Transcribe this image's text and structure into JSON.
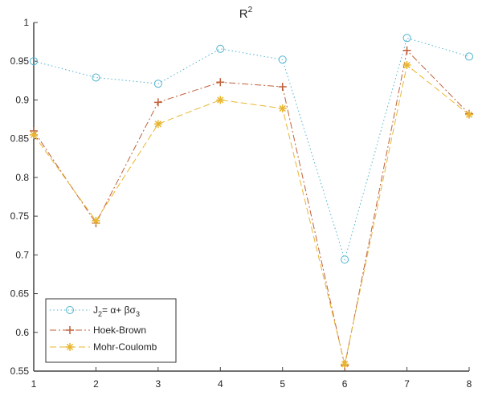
{
  "chart_data": {
    "type": "line",
    "title": "R",
    "title_superscript": "2",
    "xlabel": "",
    "ylabel": "",
    "x": [
      1,
      2,
      3,
      4,
      5,
      6,
      7,
      8
    ],
    "xlim": [
      1,
      8
    ],
    "ylim": [
      0.55,
      1
    ],
    "xticks": [
      "1",
      "2",
      "3",
      "4",
      "5",
      "6",
      "7",
      "8"
    ],
    "yticks": [
      "0.55",
      "0.6",
      "0.65",
      "0.7",
      "0.75",
      "0.8",
      "0.85",
      "0.9",
      "0.95",
      "1"
    ],
    "grid": false,
    "legend_placement": "bottom-left",
    "series": [
      {
        "name": "J2 = α + βσ3",
        "legend_parts": {
          "base": "J",
          "sub1": "2",
          "mid": "= α+ βσ",
          "sub2": "3"
        },
        "color": "#4fb3cf",
        "marker": "circle",
        "linestyle": "dotted",
        "values": [
          0.95,
          0.929,
          0.921,
          0.966,
          0.952,
          0.694,
          0.98,
          0.956
        ]
      },
      {
        "name": "Hoek-Brown",
        "color": "#c0603a",
        "marker": "plus",
        "linestyle": "dashdot",
        "values": [
          0.86,
          0.741,
          0.897,
          0.923,
          0.917,
          0.557,
          0.964,
          0.882
        ]
      },
      {
        "name": "Mohr-Coulomb",
        "color": "#e8b630",
        "marker": "asterisk",
        "linestyle": "dashed",
        "values": [
          0.855,
          0.744,
          0.869,
          0.9,
          0.889,
          0.559,
          0.945,
          0.881
        ]
      }
    ]
  }
}
